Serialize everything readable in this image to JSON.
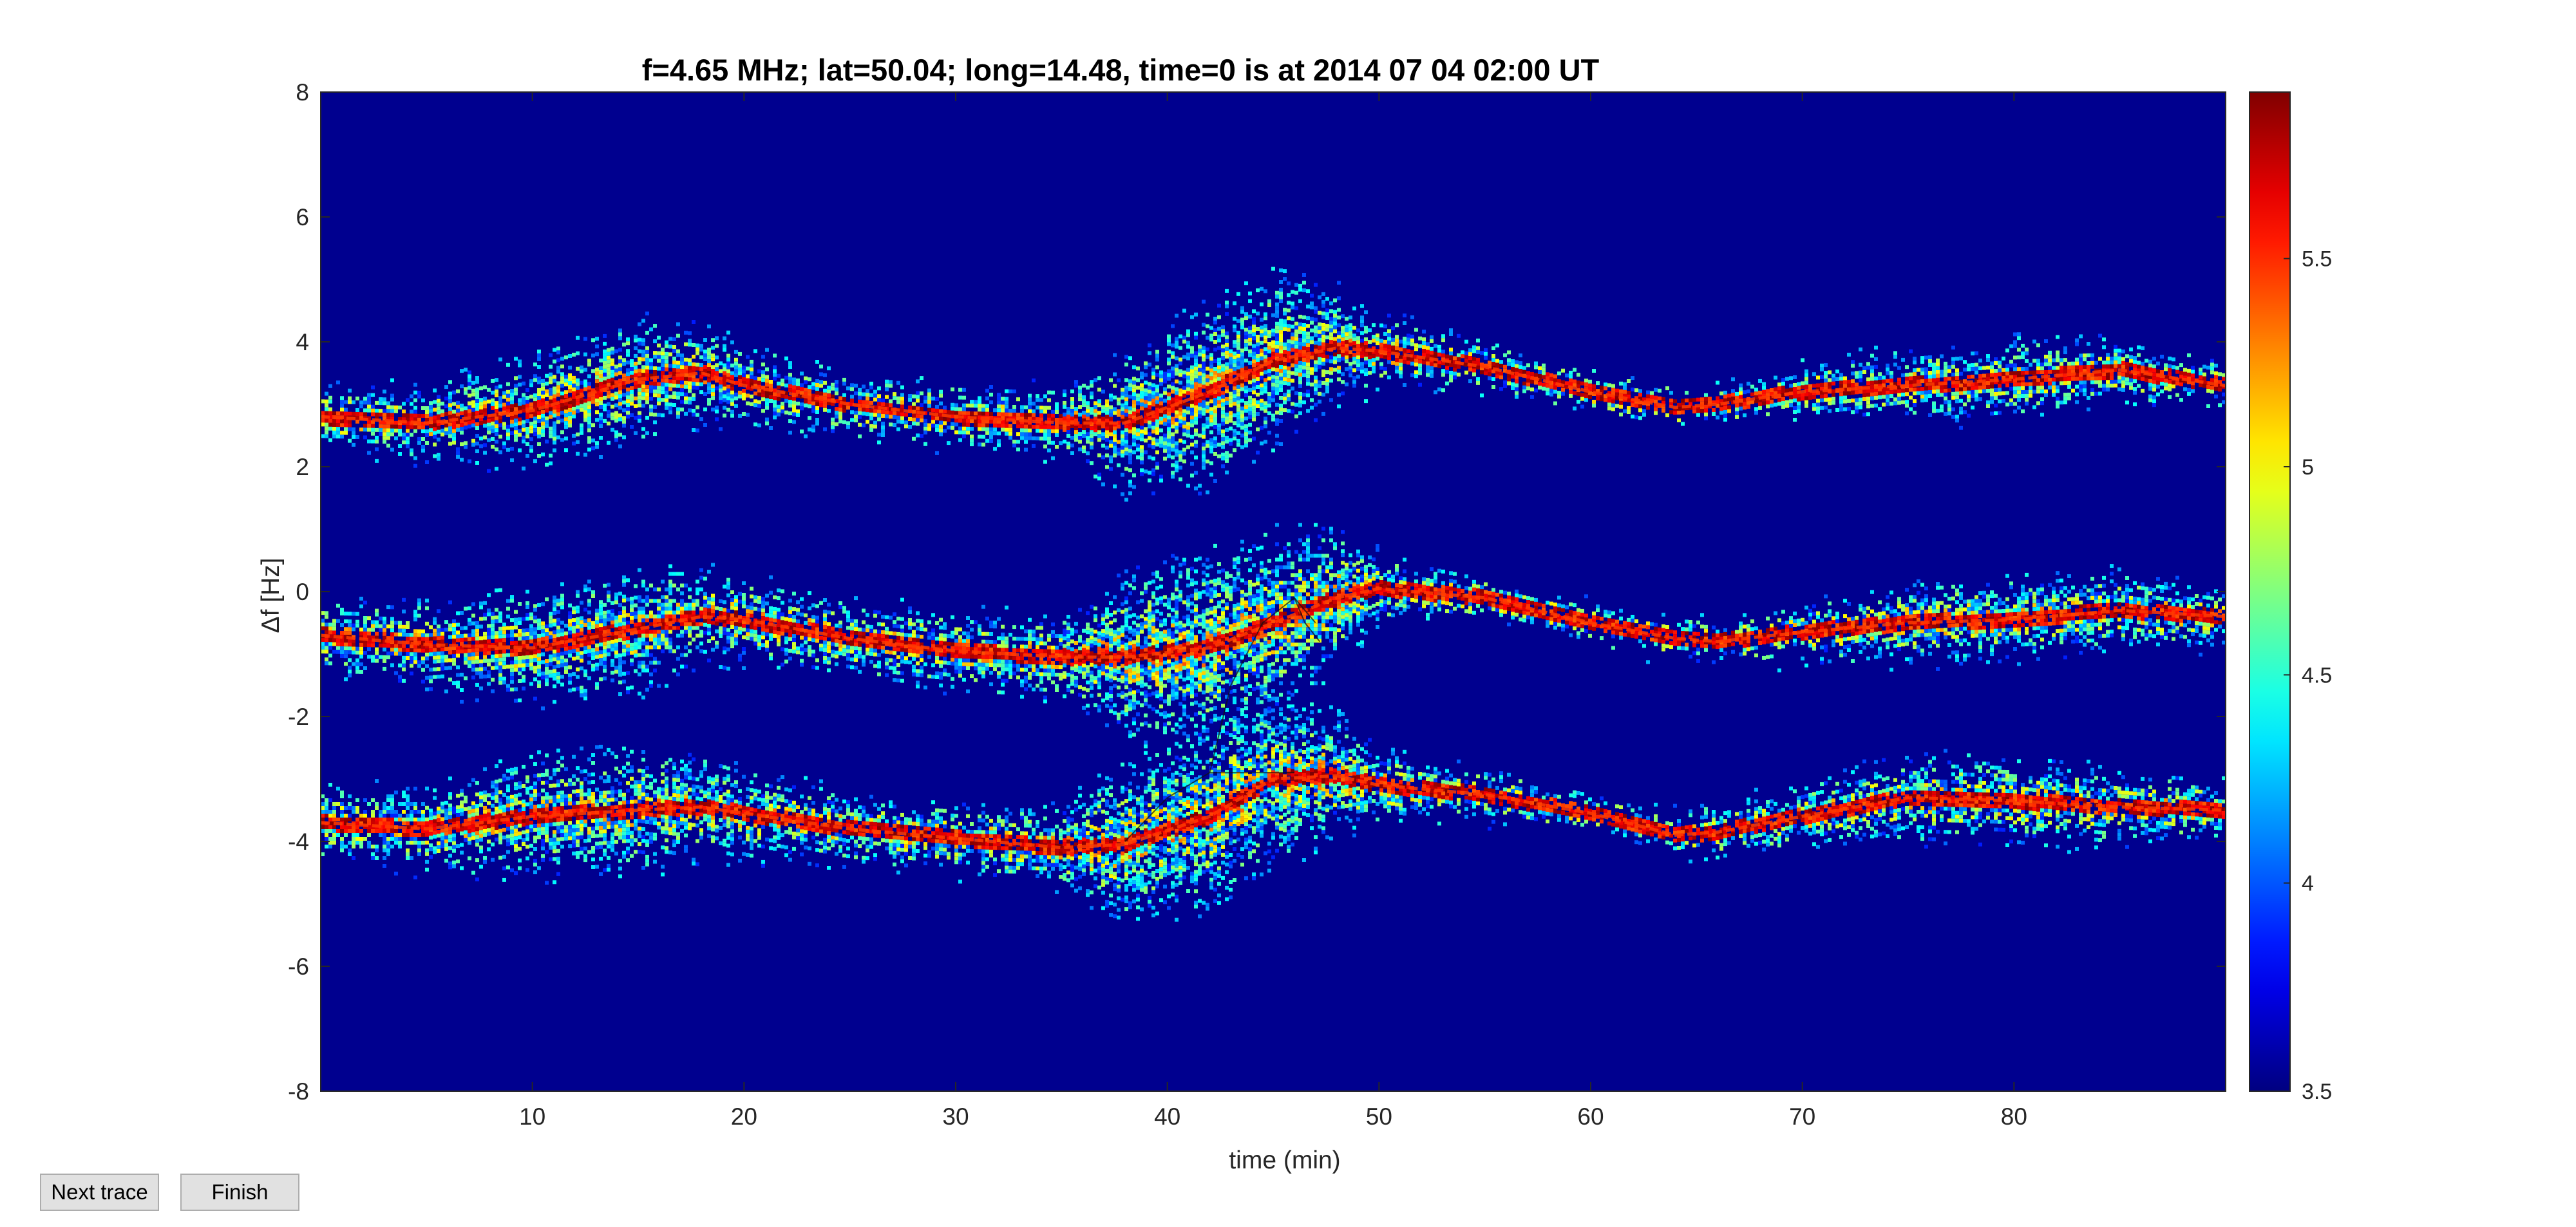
{
  "chart_data": {
    "type": "heatmap",
    "title": "f=4.65 MHz;  lat=50.04; long=14.48, time=0 is at 2014 07 04 02:00 UT",
    "xlabel": "time (min)",
    "ylabel": "Δf [Hz]",
    "xlim": [
      0,
      90
    ],
    "ylim": [
      -8,
      8
    ],
    "xticks": [
      10,
      20,
      30,
      40,
      50,
      60,
      70,
      80
    ],
    "yticks": [
      -8,
      -6,
      -4,
      -2,
      0,
      2,
      4,
      6,
      8
    ],
    "colorbar": {
      "colormap": "jet",
      "clim": [
        3.5,
        5.9
      ],
      "ticks": [
        3.5,
        4,
        4.5,
        5,
        5.5
      ]
    },
    "background_color": "#00008f",
    "grid": false,
    "traces": [
      {
        "time": [
          0,
          5,
          10,
          15,
          18,
          20,
          25,
          30,
          35,
          38,
          42,
          45,
          48,
          50,
          55,
          60,
          64,
          66,
          70,
          75,
          80,
          85,
          90
        ],
        "df": [
          2.8,
          2.7,
          2.9,
          3.4,
          3.5,
          3.3,
          3.0,
          2.8,
          2.7,
          2.7,
          3.2,
          3.7,
          3.9,
          3.85,
          3.6,
          3.2,
          2.95,
          3.0,
          3.2,
          3.3,
          3.4,
          3.55,
          3.3
        ],
        "spread": [
          0.35,
          0.4,
          0.7,
          0.8,
          0.6,
          0.45,
          0.35,
          0.35,
          0.4,
          0.9,
          1.3,
          1.2,
          0.8,
          0.4,
          0.25,
          0.2,
          0.2,
          0.2,
          0.3,
          0.4,
          0.45,
          0.35,
          0.2
        ]
      },
      {
        "time": [
          0,
          5,
          10,
          15,
          18,
          20,
          25,
          30,
          35,
          38,
          42,
          45,
          48,
          50,
          55,
          60,
          64,
          66,
          70,
          75,
          80,
          85,
          90
        ],
        "df": [
          -0.7,
          -0.85,
          -0.9,
          -0.6,
          -0.4,
          -0.45,
          -0.75,
          -0.95,
          -1.05,
          -1.05,
          -0.9,
          -0.5,
          -0.1,
          0.05,
          -0.1,
          -0.5,
          -0.75,
          -0.8,
          -0.65,
          -0.5,
          -0.45,
          -0.3,
          -0.4
        ],
        "spread": [
          0.4,
          0.5,
          0.7,
          0.8,
          0.6,
          0.5,
          0.45,
          0.45,
          0.5,
          1.1,
          1.4,
          1.3,
          0.9,
          0.4,
          0.2,
          0.2,
          0.2,
          0.2,
          0.3,
          0.45,
          0.5,
          0.45,
          0.3
        ]
      },
      {
        "time": [
          0,
          5,
          10,
          15,
          18,
          20,
          25,
          30,
          35,
          38,
          42,
          45,
          48,
          50,
          55,
          60,
          64,
          66,
          70,
          75,
          80,
          85,
          90
        ],
        "df": [
          -3.7,
          -3.8,
          -3.6,
          -3.5,
          -3.45,
          -3.55,
          -3.8,
          -3.95,
          -4.1,
          -4.05,
          -3.6,
          -3.0,
          -2.95,
          -3.1,
          -3.25,
          -3.55,
          -3.9,
          -3.85,
          -3.6,
          -3.3,
          -3.35,
          -3.45,
          -3.5
        ],
        "spread": [
          0.4,
          0.5,
          0.75,
          0.8,
          0.6,
          0.5,
          0.4,
          0.4,
          0.5,
          1.1,
          1.3,
          1.2,
          0.8,
          0.4,
          0.25,
          0.2,
          0.2,
          0.25,
          0.35,
          0.5,
          0.5,
          0.4,
          0.3
        ]
      }
    ]
  },
  "buttons": {
    "next_trace": "Next trace",
    "finish": "Finish"
  }
}
